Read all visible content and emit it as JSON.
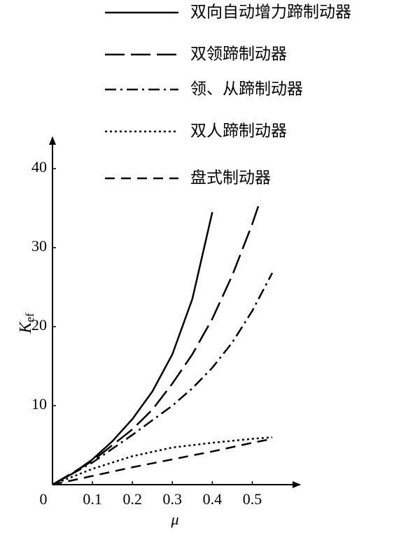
{
  "chart_data": {
    "type": "line",
    "xlabel": "μ",
    "ylabel": "K",
    "ylabel_subscript": "ef",
    "xlim": [
      0,
      0.62
    ],
    "ylim": [
      0,
      44
    ],
    "xticks": [
      0,
      0.1,
      0.2,
      0.3,
      0.4,
      0.5
    ],
    "yticks": [
      10,
      20,
      30,
      40
    ],
    "legend": "top-right",
    "series": [
      {
        "name": "双向自动增力蹄制动器",
        "color": "#000000",
        "dash": "solid",
        "x": [
          0,
          0.05,
          0.1,
          0.15,
          0.2,
          0.25,
          0.3,
          0.35,
          0.4
        ],
        "values": [
          0,
          1.4,
          3.2,
          5.5,
          8.3,
          11.8,
          16.5,
          23.5,
          34.5
        ]
      },
      {
        "name": "双领蹄制动器",
        "color": "#000000",
        "dash": "long-dash",
        "x": [
          0,
          0.1,
          0.2,
          0.25,
          0.3,
          0.35,
          0.4,
          0.45,
          0.5,
          0.52
        ],
        "values": [
          0,
          3,
          7,
          9.5,
          12.8,
          16.5,
          21,
          26.5,
          33,
          36
        ]
      },
      {
        "name": "领、从蹄制动器",
        "color": "#000000",
        "dash": "dash-dot",
        "x": [
          0,
          0.1,
          0.2,
          0.3,
          0.35,
          0.4,
          0.45,
          0.5,
          0.55
        ],
        "values": [
          0,
          2.8,
          6.3,
          10,
          12.2,
          14.8,
          18,
          22,
          26.8
        ]
      },
      {
        "name": "双人蹄制动器",
        "color": "#000000",
        "dash": "dotted",
        "x": [
          0,
          0.1,
          0.2,
          0.3,
          0.4,
          0.5,
          0.55
        ],
        "values": [
          0,
          2,
          3.6,
          4.7,
          5.3,
          5.8,
          6
        ]
      },
      {
        "name": "盘式制动器",
        "color": "#000000",
        "dash": "dashed",
        "x": [
          0,
          0.1,
          0.2,
          0.3,
          0.4,
          0.5,
          0.55
        ],
        "values": [
          0,
          1.1,
          2.2,
          3.2,
          4.2,
          5.3,
          5.8
        ]
      }
    ]
  }
}
